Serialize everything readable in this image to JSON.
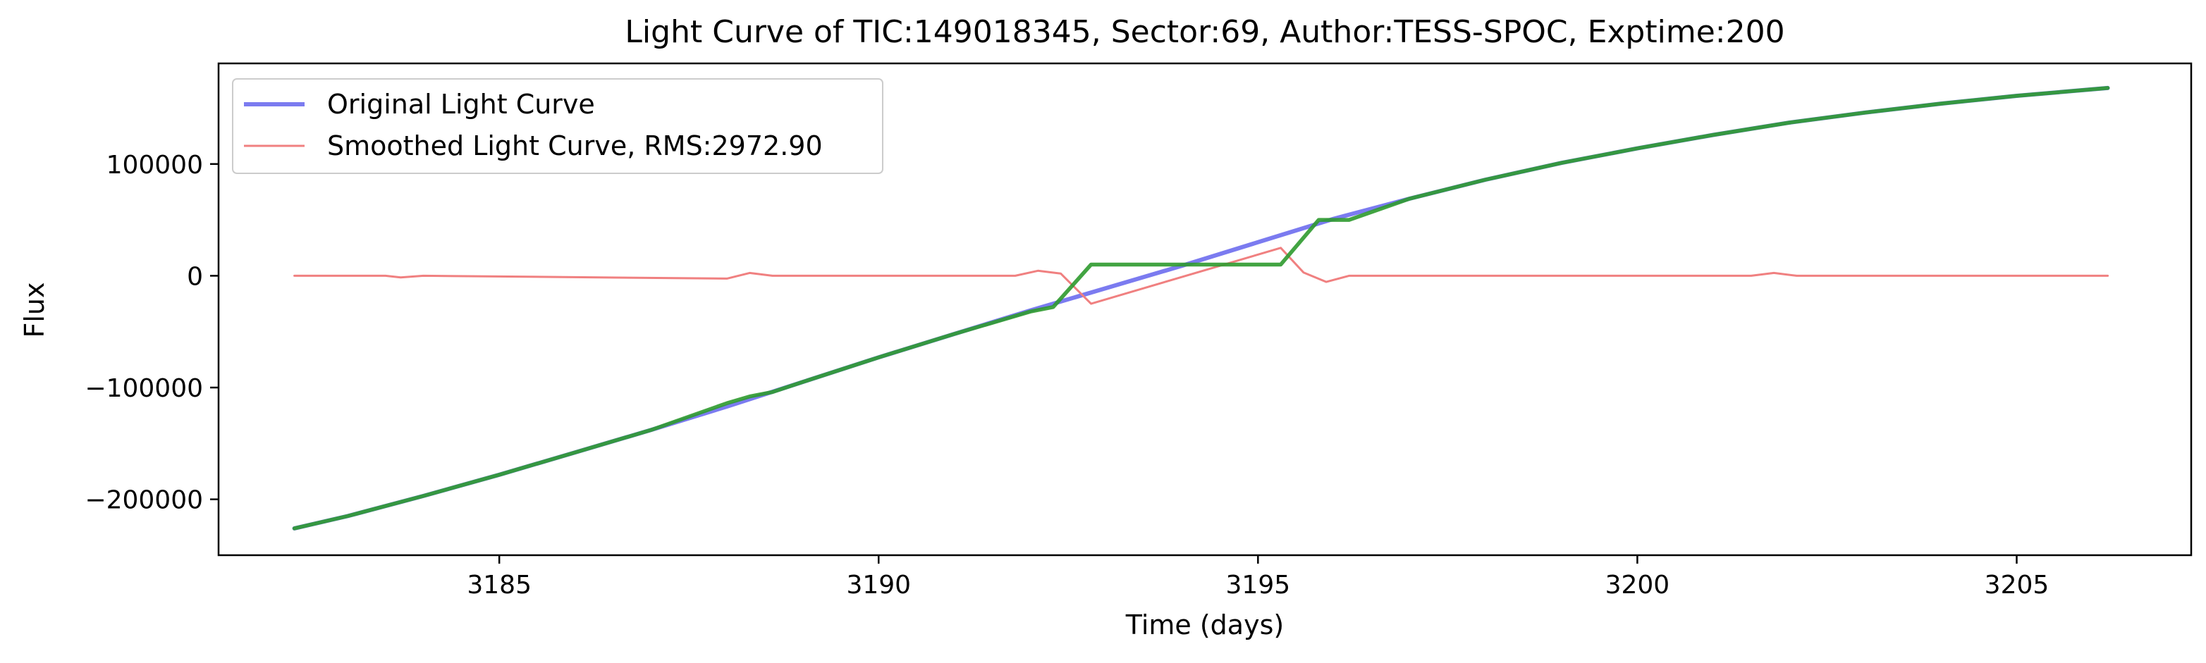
{
  "chart_data": {
    "type": "line",
    "title": "Light Curve of TIC:149018345, Sector:69, Author:TESS-SPOC, Exptime:200",
    "xlabel": "Time (days)",
    "ylabel": "Flux",
    "xlim": [
      3181.3,
      3207.3
    ],
    "ylim": [
      -250000,
      190000
    ],
    "grid": false,
    "legend_position": "top-left",
    "x_ticks": [
      3185,
      3190,
      3195,
      3200,
      3205
    ],
    "x_tick_labels": [
      "3185",
      "3190",
      "3195",
      "3200",
      "3205"
    ],
    "y_ticks": [
      -200000,
      -100000,
      0,
      100000
    ],
    "y_tick_labels": [
      "−200000",
      "−100000",
      "0",
      "100000"
    ],
    "series": [
      {
        "name": "Original Light Curve",
        "color": "#7b7bf0",
        "x": [
          3182.3,
          3183.0,
          3184.0,
          3185.0,
          3186.0,
          3187.0,
          3188.0,
          3189.0,
          3190.0,
          3191.0,
          3192.0,
          3193.0,
          3194.0,
          3195.0,
          3196.0,
          3197.0,
          3198.0,
          3199.0,
          3200.0,
          3201.0,
          3202.0,
          3203.0,
          3204.0,
          3205.0,
          3206.2
        ],
        "y": [
          -226000,
          -215000,
          -197000,
          -178000,
          -158000,
          -138000,
          -117000,
          -95000,
          -73000,
          -52000,
          -31000,
          -11000,
          9000,
          30000,
          51000,
          69000,
          86000,
          101000,
          114000,
          126000,
          137000,
          146000,
          154000,
          161000,
          168000
        ]
      },
      {
        "name": "Smoothed Light Curve, RMS:2972.90",
        "color": "#f08080",
        "x": [
          3182.3,
          3183.5,
          3183.7,
          3184.0,
          3188.0,
          3188.3,
          3188.6,
          3191.8,
          3192.1,
          3192.4,
          3192.8,
          3195.3,
          3195.6,
          3195.9,
          3196.2,
          3201.5,
          3201.8,
          3202.1,
          3206.2
        ],
        "y": [
          0,
          0,
          -1500,
          0,
          -2500,
          2500,
          0,
          0,
          4500,
          2000,
          -25000,
          25000,
          3000,
          -5500,
          0,
          0,
          2500,
          0,
          0
        ]
      },
      {
        "name": "",
        "color": "#2e9a2e",
        "x": [
          3182.3,
          3183.0,
          3184.0,
          3185.0,
          3186.0,
          3187.0,
          3188.0,
          3188.3,
          3188.6,
          3189.0,
          3190.0,
          3191.0,
          3192.0,
          3192.3,
          3192.8,
          3195.3,
          3195.8,
          3196.2,
          3197.0,
          3198.0,
          3199.0,
          3200.0,
          3201.0,
          3202.0,
          3203.0,
          3204.0,
          3205.0,
          3206.2
        ],
        "y": [
          -226000,
          -215000,
          -197000,
          -178000,
          -158000,
          -138000,
          -114000,
          -108000,
          -104000,
          -95000,
          -73000,
          -52000,
          -32000,
          -28000,
          10000,
          10000,
          50000,
          50000,
          69000,
          86000,
          101000,
          114000,
          126000,
          137000,
          146000,
          154000,
          161000,
          168000
        ]
      }
    ]
  }
}
